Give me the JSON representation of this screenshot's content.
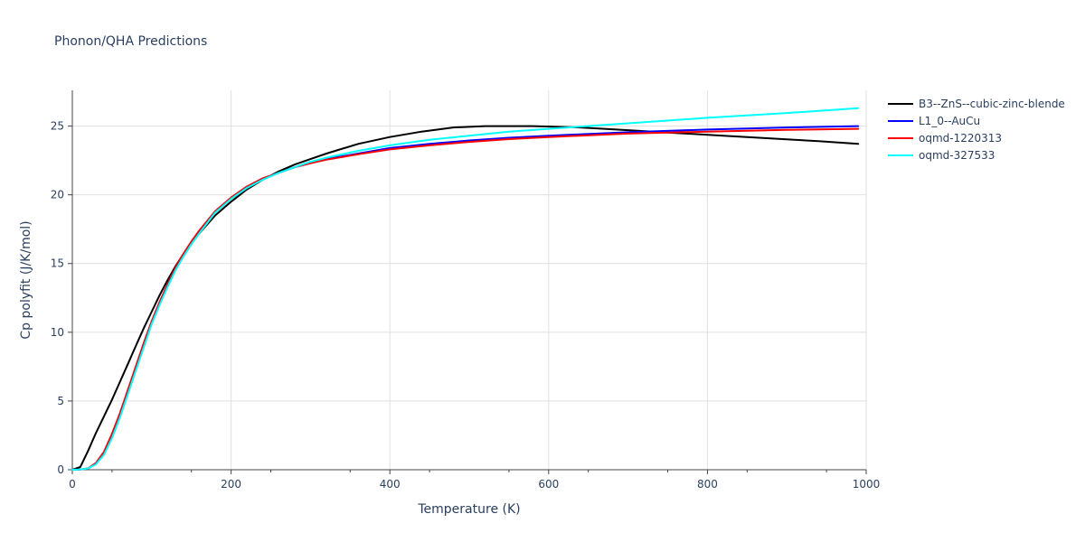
{
  "chart_data": {
    "type": "line",
    "title": "Phonon/QHA Predictions",
    "xlabel": "Temperature (K)",
    "ylabel": "Cp polyfit (J/K/mol)",
    "xlim": [
      0,
      1000
    ],
    "ylim": [
      0,
      27.6
    ],
    "x_ticks": [
      0,
      200,
      400,
      600,
      800,
      1000
    ],
    "y_ticks": [
      0,
      5,
      10,
      15,
      20,
      25
    ],
    "grid": true,
    "legend_position": "top-right",
    "series": [
      {
        "name": "B3--ZnS--cubic-zinc-blende",
        "color": "#000000",
        "x": [
          0,
          10,
          20,
          30,
          40,
          50,
          60,
          70,
          80,
          90,
          100,
          110,
          120,
          130,
          140,
          150,
          160,
          180,
          200,
          220,
          240,
          260,
          280,
          300,
          320,
          360,
          400,
          440,
          480,
          520,
          580,
          640,
          700,
          760,
          820,
          880,
          940,
          990
        ],
        "y": [
          0,
          0.2,
          1.4,
          2.7,
          3.9,
          5.1,
          6.4,
          7.7,
          9.0,
          10.3,
          11.5,
          12.7,
          13.8,
          14.8,
          15.7,
          16.5,
          17.2,
          18.5,
          19.5,
          20.4,
          21.1,
          21.7,
          22.2,
          22.6,
          23.0,
          23.7,
          24.2,
          24.6,
          24.9,
          25.0,
          25.0,
          24.9,
          24.7,
          24.5,
          24.3,
          24.1,
          23.9,
          23.7
        ]
      },
      {
        "name": "L1_0--AuCu",
        "color": "#0000ff",
        "x": [
          0,
          10,
          20,
          30,
          40,
          50,
          60,
          70,
          80,
          90,
          100,
          110,
          120,
          130,
          140,
          150,
          160,
          180,
          200,
          220,
          240,
          260,
          280,
          300,
          320,
          360,
          400,
          450,
          500,
          550,
          600,
          700,
          800,
          900,
          990
        ],
        "y": [
          0,
          0.02,
          0.1,
          0.5,
          1.3,
          2.6,
          4.1,
          5.8,
          7.5,
          9.2,
          10.8,
          12.2,
          13.5,
          14.7,
          15.7,
          16.6,
          17.4,
          18.8,
          19.8,
          20.6,
          21.2,
          21.6,
          22.0,
          22.3,
          22.6,
          23.0,
          23.4,
          23.7,
          23.95,
          24.15,
          24.3,
          24.55,
          24.75,
          24.9,
          25.0
        ]
      },
      {
        "name": "oqmd-1220313",
        "color": "#ff0000",
        "x": [
          0,
          10,
          20,
          30,
          40,
          50,
          60,
          70,
          80,
          90,
          100,
          110,
          120,
          130,
          140,
          150,
          160,
          180,
          200,
          220,
          240,
          260,
          280,
          300,
          320,
          360,
          400,
          450,
          500,
          550,
          600,
          700,
          800,
          900,
          990
        ],
        "y": [
          0,
          0.02,
          0.1,
          0.5,
          1.3,
          2.6,
          4.1,
          5.8,
          7.5,
          9.2,
          10.8,
          12.2,
          13.5,
          14.7,
          15.7,
          16.6,
          17.4,
          18.8,
          19.8,
          20.6,
          21.2,
          21.6,
          22.0,
          22.3,
          22.55,
          22.95,
          23.3,
          23.6,
          23.85,
          24.05,
          24.2,
          24.45,
          24.6,
          24.72,
          24.8
        ]
      },
      {
        "name": "oqmd-327533",
        "color": "#00ffff",
        "x": [
          0,
          10,
          20,
          30,
          40,
          50,
          60,
          70,
          80,
          90,
          100,
          110,
          120,
          130,
          140,
          150,
          160,
          180,
          200,
          220,
          240,
          260,
          280,
          300,
          320,
          360,
          400,
          450,
          500,
          550,
          600,
          700,
          800,
          900,
          990
        ],
        "y": [
          0,
          0.02,
          0.1,
          0.4,
          1.1,
          2.3,
          3.8,
          5.5,
          7.2,
          8.9,
          10.6,
          12.0,
          13.3,
          14.5,
          15.5,
          16.4,
          17.2,
          18.7,
          19.7,
          20.5,
          21.1,
          21.6,
          22.0,
          22.4,
          22.7,
          23.2,
          23.6,
          24.0,
          24.3,
          24.6,
          24.8,
          25.2,
          25.6,
          25.95,
          26.3
        ]
      }
    ]
  }
}
